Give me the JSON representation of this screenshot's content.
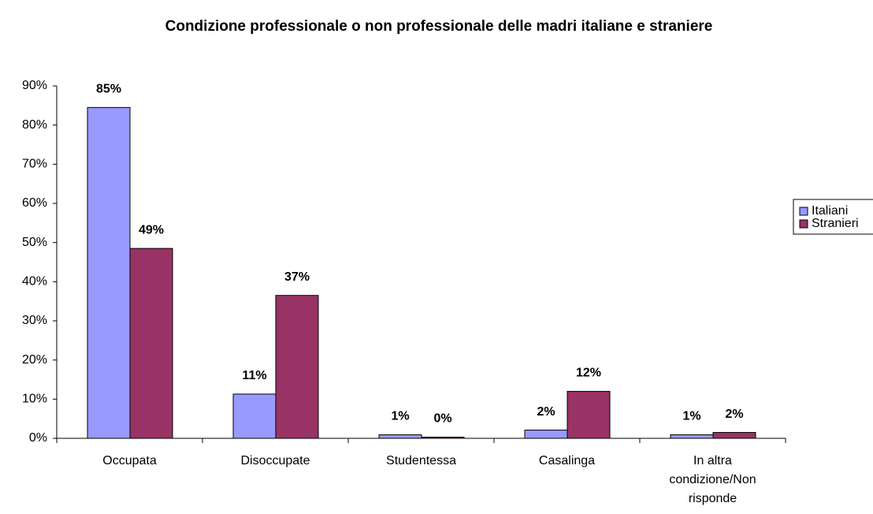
{
  "chart_data": {
    "type": "bar",
    "title": "Condizione professionale o non professionale delle madri italiane e straniere",
    "categories": [
      "Occupata",
      "Disoccupate",
      "Studentessa",
      "Casalinga",
      "In altra condizione/Non risponde"
    ],
    "series": [
      {
        "name": "Italiani",
        "color": "#9999ff",
        "values": [
          84.5,
          11.3,
          0.9,
          2.1,
          0.9
        ],
        "value_labels": [
          "85%",
          "11%",
          "1%",
          "2%",
          "1%"
        ]
      },
      {
        "name": "Stranieri",
        "color": "#993366",
        "values": [
          48.5,
          36.5,
          0.3,
          12,
          1.5
        ],
        "value_labels": [
          "49%",
          "37%",
          "0%",
          "12%",
          "2%"
        ]
      }
    ],
    "ylim": [
      0,
      90
    ],
    "yticks": [
      {
        "value": 0,
        "label": "0%"
      },
      {
        "value": 10,
        "label": "10%"
      },
      {
        "value": 20,
        "label": "20%"
      },
      {
        "value": 30,
        "label": "30%"
      },
      {
        "value": 40,
        "label": "40%"
      },
      {
        "value": 50,
        "label": "50%"
      },
      {
        "value": 60,
        "label": "60%"
      },
      {
        "value": 70,
        "label": "70%"
      },
      {
        "value": 80,
        "label": "80%"
      },
      {
        "value": 90,
        "label": "90%"
      }
    ],
    "legend": "right"
  }
}
